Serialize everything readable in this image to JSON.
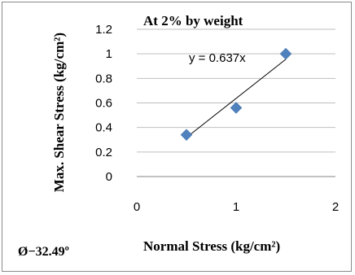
{
  "chart_data": {
    "type": "scatter",
    "title": "At 2% by weight",
    "xlabel": "Normal Stress (kg/cm²)",
    "ylabel": "Max. Shear Stress (kg/cm²)",
    "xlim": [
      0,
      2
    ],
    "ylim": [
      0,
      1.2
    ],
    "xticks": [
      "0",
      "1",
      "2"
    ],
    "yticks": [
      "0",
      "0.2",
      "0.4",
      "0.6",
      "0.8",
      "1",
      "1.2"
    ],
    "points": [
      {
        "x": 0.5,
        "y": 0.34
      },
      {
        "x": 1.0,
        "y": 0.56
      },
      {
        "x": 1.5,
        "y": 1.0
      }
    ],
    "trendline": {
      "type": "linear",
      "slope": 0.637,
      "label": "y = 0.637x",
      "x_from": 0.5,
      "x_to": 1.5
    },
    "grid": "horizontal",
    "marker_color": "#4f81bd",
    "annotation": "Ø−32.49º"
  }
}
